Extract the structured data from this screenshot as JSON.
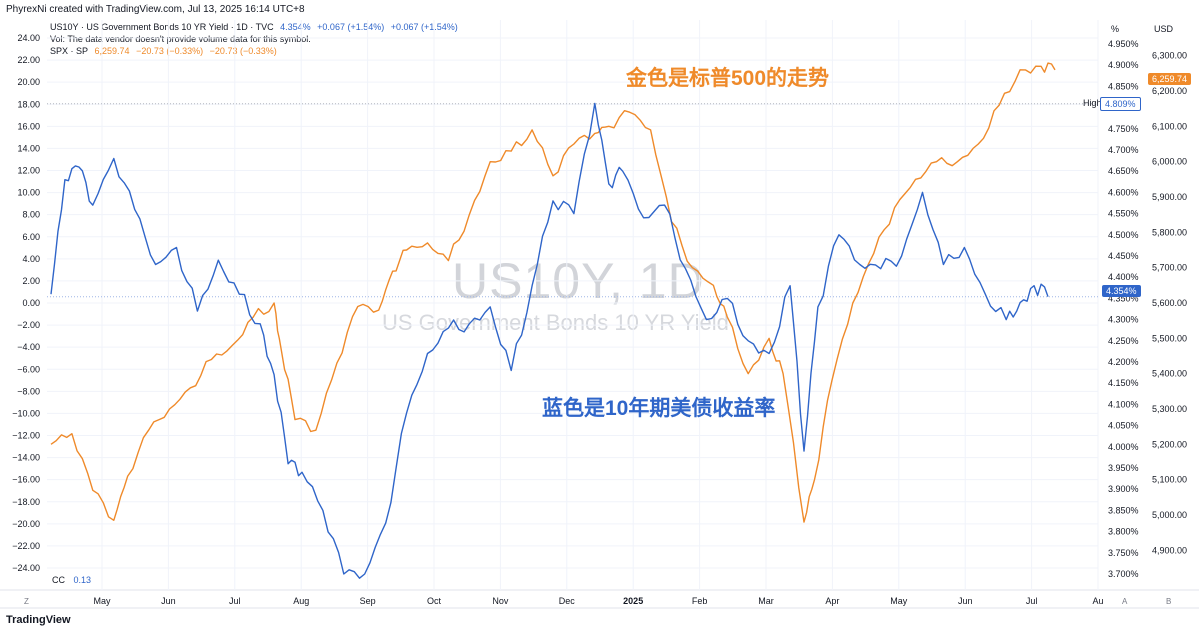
{
  "header": {
    "credit": "PhyrexNi created with TradingView.com, Jul 13, 2025 16:14 UTC+8",
    "legend_us10y": {
      "symbol": "US10Y · US Government Bonds 10 YR Yield · 1D · TVC",
      "last": "4.354%",
      "chg1": "+0.067 (+1.54%)",
      "chg2": "+0.067 (+1.54%)"
    },
    "legend_vol": "Vol: The data vendor doesn't provide volume data for this symbol.",
    "legend_spx": {
      "symbol": "SPX · SP",
      "last": "6,259.74",
      "chg1": "−20.73 (−0.33%)",
      "chg2": "−20.73 (−0.33%)"
    }
  },
  "watermark": {
    "symbol": "US10Y, 1D",
    "name": "US Government Bonds 10 YR Yield"
  },
  "annotations": {
    "gold": "金色是标普500的走势",
    "blue": "蓝色是10年期美债收益率"
  },
  "axes_units": {
    "pct": "%",
    "usd": "USD"
  },
  "tags": {
    "high_label": "High",
    "high_value": "4.809%",
    "spx_last": "6,259.74",
    "us10y_last": "4.354%"
  },
  "cc": {
    "label": "CC",
    "value": "0.13"
  },
  "footer": {
    "logo": "TradingView",
    "z": "Z",
    "a": "A",
    "b": "B"
  },
  "colors": {
    "spx": "#ef8a2a",
    "us10y": "#2f65c9",
    "grid": "#f0f3fa",
    "text": "#131722"
  },
  "chart_data": {
    "type": "line",
    "x_ticks": [
      "May",
      "Jun",
      "Jul",
      "Aug",
      "Sep",
      "Oct",
      "Nov",
      "Dec",
      "2025",
      "Feb",
      "Mar",
      "Apr",
      "May",
      "Jun",
      "Jul",
      "Au"
    ],
    "left_axis": {
      "ticks": [
        "24.00",
        "22.00",
        "20.00",
        "18.00",
        "16.00",
        "14.00",
        "12.00",
        "10.00",
        "8.00",
        "6.00",
        "4.00",
        "2.00",
        "0.00",
        "−2.00",
        "−4.00",
        "−6.00",
        "−8.00",
        "−10.00",
        "−12.00",
        "−14.00",
        "−16.00",
        "−18.00",
        "−20.00",
        "−22.00",
        "−24.00"
      ],
      "ylim": [
        -24,
        24
      ]
    },
    "pct_axis": {
      "ticks": [
        "4.950%",
        "4.900%",
        "4.850%",
        "4.800%",
        "4.750%",
        "4.700%",
        "4.650%",
        "4.600%",
        "4.550%",
        "4.500%",
        "4.450%",
        "4.400%",
        "4.350%",
        "4.300%",
        "4.250%",
        "4.200%",
        "4.150%",
        "4.100%",
        "4.050%",
        "4.000%",
        "3.950%",
        "3.900%",
        "3.850%",
        "3.800%",
        "3.750%",
        "3.700%"
      ],
      "ylim": [
        3.7,
        4.95
      ]
    },
    "usd_axis": {
      "ticks": [
        "6,300.00",
        "6,200.00",
        "6,100.00",
        "6,000.00",
        "5,900.00",
        "5,800.00",
        "5,700.00",
        "5,600.00",
        "5,500.00",
        "5,400.00",
        "5,300.00",
        "5,200.00",
        "5,100.00",
        "5,000.00",
        "4,900.00"
      ],
      "ylim": [
        4850,
        6350
      ]
    },
    "series": [
      {
        "name": "SPX",
        "axis": "usd",
        "x": [
          0,
          0.3,
          0.6,
          0.9,
          1.1,
          1.4,
          1.7,
          2.0,
          2.3,
          2.6,
          2.9,
          3.2,
          3.3,
          3.5,
          3.8,
          4.1,
          4.4,
          4.7,
          4.9,
          5.1,
          5.4,
          5.7,
          6.0,
          6.3,
          6.6,
          6.9,
          7.2,
          7.5,
          7.8,
          8.0,
          8.3,
          8.6,
          8.9,
          9.2,
          9.5,
          9.7,
          10.0,
          10.3,
          10.5,
          10.8,
          10.95,
          11.2,
          11.5,
          11.8,
          12.1,
          12.4,
          12.7,
          13.0,
          13.3,
          13.6,
          13.9,
          14.2,
          14.4
        ],
        "values": [
          5200,
          5230,
          5070,
          4985,
          5110,
          5240,
          5300,
          5360,
          5440,
          5480,
          5560,
          5600,
          5470,
          5270,
          5240,
          5430,
          5590,
          5580,
          5690,
          5750,
          5770,
          5720,
          5850,
          6000,
          6030,
          6090,
          5960,
          6050,
          6080,
          6100,
          6140,
          6090,
          5830,
          5700,
          5650,
          5560,
          5400,
          5500,
          5400,
          4980,
          5100,
          5380,
          5600,
          5740,
          5870,
          5950,
          6000,
          6000,
          6050,
          6160,
          6260,
          6270,
          6259.74
        ]
      },
      {
        "name": "US10Y",
        "axis": "pct",
        "x": [
          0,
          0.2,
          0.4,
          0.6,
          0.9,
          1.2,
          1.5,
          1.8,
          2.1,
          2.4,
          2.7,
          3.0,
          3.2,
          3.4,
          3.6,
          3.9,
          4.2,
          4.5,
          4.8,
          5.1,
          5.4,
          5.7,
          6.0,
          6.3,
          6.6,
          6.9,
          7.2,
          7.5,
          7.8,
          8.0,
          8.2,
          8.5,
          8.8,
          9.1,
          9.4,
          9.7,
          10.0,
          10.3,
          10.6,
          10.8,
          11.0,
          11.3,
          11.6,
          11.9,
          12.2,
          12.5,
          12.8,
          13.1,
          13.4,
          13.7,
          13.9,
          14.1,
          14.3
        ],
        "values": [
          4.36,
          4.63,
          4.66,
          4.57,
          4.68,
          4.56,
          4.43,
          4.47,
          4.32,
          4.44,
          4.36,
          4.29,
          4.17,
          3.96,
          3.94,
          3.85,
          3.7,
          3.7,
          3.82,
          4.08,
          4.22,
          4.28,
          4.29,
          4.33,
          4.18,
          4.38,
          4.58,
          4.55,
          4.81,
          4.62,
          4.65,
          4.54,
          4.57,
          4.42,
          4.3,
          4.35,
          4.25,
          4.22,
          4.38,
          3.99,
          4.33,
          4.5,
          4.43,
          4.42,
          4.45,
          4.6,
          4.43,
          4.47,
          4.36,
          4.3,
          4.34,
          4.38,
          4.354
        ]
      }
    ]
  }
}
